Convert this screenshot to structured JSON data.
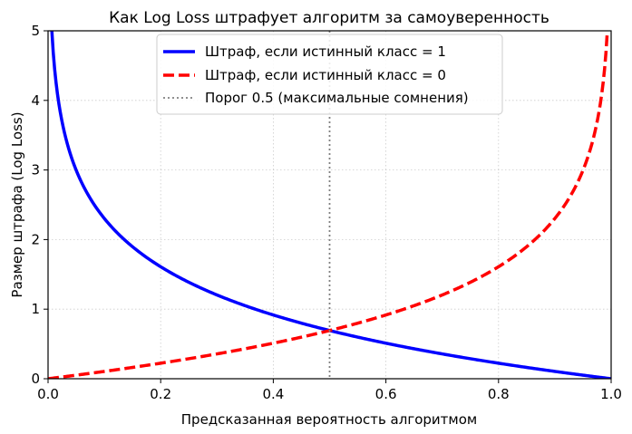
{
  "chart_data": {
    "type": "line",
    "title": "Как Log Loss штрафует алгоритм за самоуверенность",
    "xlabel": "Предсказанная вероятность алгоритмом",
    "ylabel": "Размер штрафа (Log Loss)",
    "xlim": [
      0,
      1
    ],
    "ylim": [
      0,
      5
    ],
    "xticks": [
      "0.0",
      "0.2",
      "0.4",
      "0.6",
      "0.8",
      "1.0"
    ],
    "xtick_values": [
      0,
      0.2,
      0.4,
      0.6,
      0.8,
      1.0
    ],
    "yticks": [
      "0",
      "1",
      "2",
      "3",
      "4",
      "5"
    ],
    "ytick_values": [
      0,
      1,
      2,
      3,
      4,
      5
    ],
    "grid": true,
    "legend_position": "upper center",
    "series": [
      {
        "name": "Штраф, если истинный класс = 1",
        "formula": "-ln(p)",
        "color": "#0000ff",
        "style": "solid",
        "x": [
          0.0067,
          0.01,
          0.02,
          0.03,
          0.05,
          0.075,
          0.1,
          0.15,
          0.2,
          0.25,
          0.3,
          0.35,
          0.4,
          0.45,
          0.5,
          0.55,
          0.6,
          0.65,
          0.7,
          0.75,
          0.8,
          0.85,
          0.9,
          0.95,
          0.99,
          1.0
        ],
        "values": [
          5.0,
          4.61,
          3.91,
          3.51,
          3.0,
          2.59,
          2.3,
          1.9,
          1.61,
          1.39,
          1.2,
          1.05,
          0.92,
          0.8,
          0.69,
          0.6,
          0.51,
          0.43,
          0.36,
          0.29,
          0.22,
          0.16,
          0.11,
          0.05,
          0.01,
          0.0
        ]
      },
      {
        "name": "Штраф, если истинный класс = 0",
        "formula": "-ln(1-p)",
        "color": "#ff0000",
        "style": "dashed",
        "x": [
          0.0,
          0.01,
          0.05,
          0.1,
          0.15,
          0.2,
          0.25,
          0.3,
          0.35,
          0.4,
          0.45,
          0.5,
          0.55,
          0.6,
          0.65,
          0.7,
          0.75,
          0.8,
          0.85,
          0.9,
          0.925,
          0.95,
          0.97,
          0.98,
          0.99,
          0.9933
        ],
        "values": [
          0.0,
          0.01,
          0.05,
          0.11,
          0.16,
          0.22,
          0.29,
          0.36,
          0.43,
          0.51,
          0.6,
          0.69,
          0.8,
          0.92,
          1.05,
          1.2,
          1.39,
          1.61,
          1.9,
          2.3,
          2.59,
          3.0,
          3.51,
          3.91,
          4.61,
          5.0
        ]
      },
      {
        "name": "Порог 0.5 (максимальные сомнения)",
        "type": "vline",
        "x": 0.5,
        "color": "#808080",
        "style": "dotted"
      }
    ]
  }
}
